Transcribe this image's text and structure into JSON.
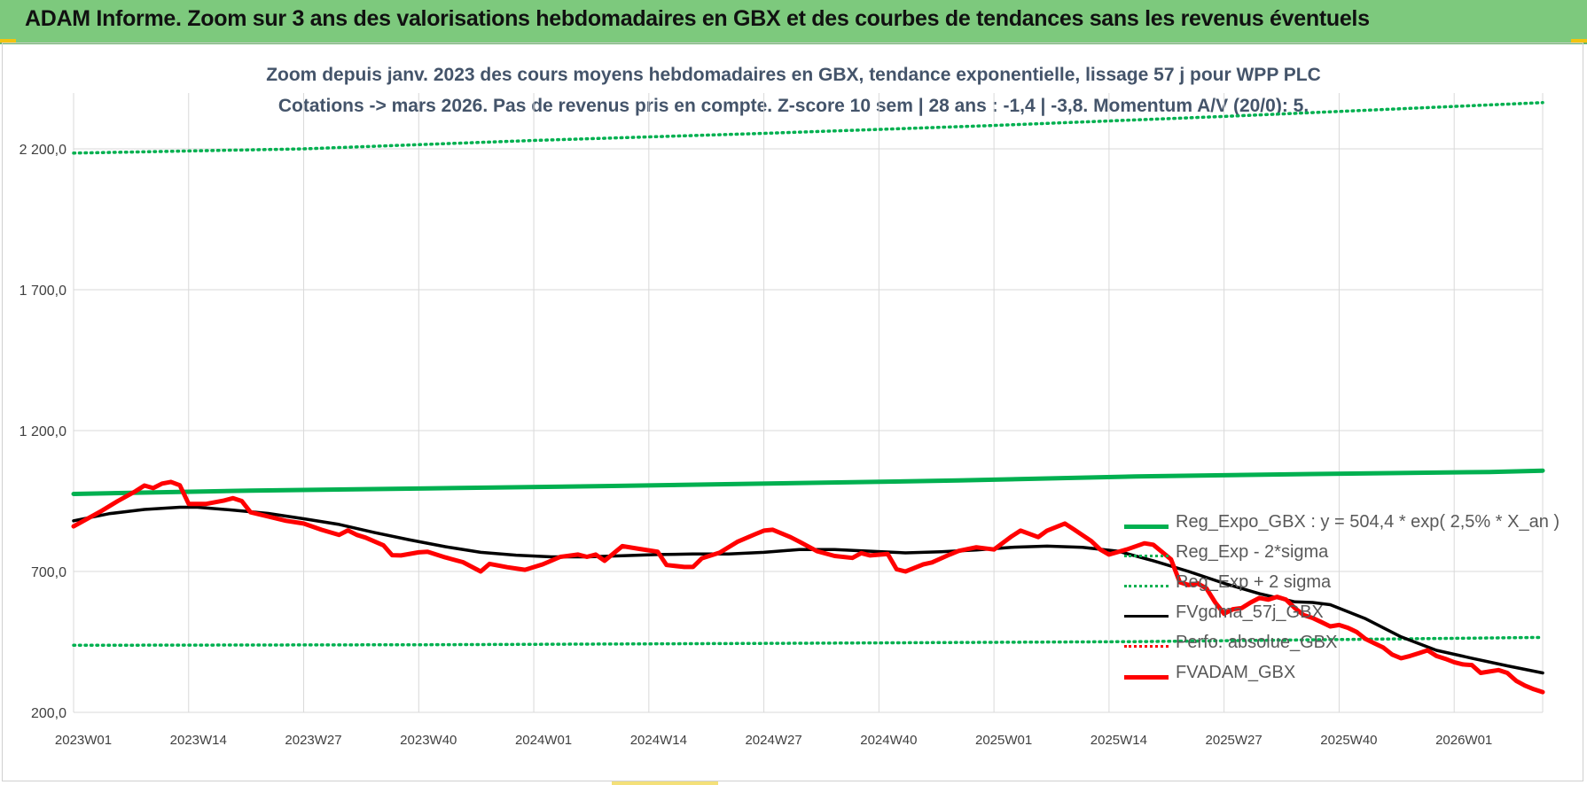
{
  "banner": {
    "title": "ADAM Informe. Zoom sur 3 ans des valorisations hebdomadaires en GBX et des courbes de tendances sans les revenus éventuels"
  },
  "chart_data": {
    "type": "line",
    "title": "Zoom depuis janv. 2023 des cours moyens hebdomadaires en GBX, tendance exponentielle, lissage 57 j pour WPP PLC",
    "subtitle": "Cotations -> mars 2026. Pas de revenus pris en compte. Z-score 10 sem | 28 ans : -1,4 | -3,8. Momentum A/V (20/0): 5.",
    "xlabel": "",
    "ylabel": "",
    "ylim": [
      200,
      2200
    ],
    "y_ticks": [
      "200,0",
      "700,0",
      "1 200,0",
      "1 700,0",
      "2 200,0"
    ],
    "x_ticks": [
      "2023W01",
      "2023W14",
      "2023W27",
      "2023W40",
      "2024W01",
      "2024W14",
      "2024W27",
      "2024W40",
      "2025W01",
      "2025W14",
      "2025W27",
      "2025W40",
      "2026W01"
    ],
    "x_range_weeks": [
      0,
      166
    ],
    "grid": true,
    "legend_position": "bottom-right",
    "series": [
      {
        "name": "Reg_Expo_GBX : y = 504,4 * exp( 2,5% *  X_an )",
        "color": "#00b050",
        "style": "solid-thick",
        "points": [
          [
            0,
            975
          ],
          [
            20,
            987
          ],
          [
            40,
            995
          ],
          [
            60,
            1003
          ],
          [
            80,
            1013
          ],
          [
            100,
            1023
          ],
          [
            120,
            1037
          ],
          [
            140,
            1046
          ],
          [
            160,
            1053
          ],
          [
            166,
            1058
          ]
        ]
      },
      {
        "name": "Reg_Exp - 2*sigma",
        "color": "#00b050",
        "style": "dotted",
        "points": [
          [
            0,
            438
          ],
          [
            40,
            440
          ],
          [
            80,
            445
          ],
          [
            120,
            451
          ],
          [
            166,
            466
          ]
        ]
      },
      {
        "name": "Reg_Exp + 2 sigma",
        "color": "#00b050",
        "style": "dotted",
        "points": [
          [
            0,
            2185
          ],
          [
            26,
            2200
          ],
          [
            52,
            2230
          ],
          [
            78,
            2255
          ],
          [
            104,
            2283
          ],
          [
            130,
            2315
          ],
          [
            166,
            2364
          ]
        ]
      },
      {
        "name": "FVgdma_57j_GBX",
        "color": "#000000",
        "style": "solid",
        "points": [
          [
            0,
            880
          ],
          [
            4,
            905
          ],
          [
            8,
            920
          ],
          [
            12,
            928
          ],
          [
            14,
            928
          ],
          [
            18,
            918
          ],
          [
            22,
            906
          ],
          [
            26,
            887
          ],
          [
            30,
            867
          ],
          [
            34,
            838
          ],
          [
            38,
            812
          ],
          [
            42,
            788
          ],
          [
            46,
            768
          ],
          [
            50,
            758
          ],
          [
            54,
            752
          ],
          [
            58,
            752
          ],
          [
            62,
            756
          ],
          [
            66,
            760
          ],
          [
            70,
            762
          ],
          [
            74,
            762
          ],
          [
            78,
            768
          ],
          [
            82,
            778
          ],
          [
            86,
            778
          ],
          [
            90,
            772
          ],
          [
            94,
            766
          ],
          [
            98,
            770
          ],
          [
            102,
            776
          ],
          [
            106,
            786
          ],
          [
            110,
            790
          ],
          [
            114,
            786
          ],
          [
            118,
            772
          ],
          [
            122,
            738
          ],
          [
            126,
            700
          ],
          [
            130,
            658
          ],
          [
            134,
            621
          ],
          [
            138,
            592
          ],
          [
            140,
            590
          ],
          [
            142,
            582
          ],
          [
            146,
            532
          ],
          [
            150,
            468
          ],
          [
            154,
            420
          ],
          [
            158,
            392
          ],
          [
            162,
            365
          ],
          [
            166,
            340
          ]
        ]
      },
      {
        "name": "Perfo. absolue_GBX",
        "color": "#ff0000",
        "style": "dotted",
        "points": []
      },
      {
        "name": "FVADAM_GBX",
        "color": "#ff0000",
        "style": "solid-thick",
        "points": [
          [
            0,
            860
          ],
          [
            3,
            912
          ],
          [
            5,
            950
          ],
          [
            7,
            985
          ],
          [
            8,
            1005
          ],
          [
            9,
            996
          ],
          [
            10,
            1012
          ],
          [
            11,
            1018
          ],
          [
            12,
            1006
          ],
          [
            13,
            940
          ],
          [
            15,
            940
          ],
          [
            17,
            952
          ],
          [
            18,
            960
          ],
          [
            19,
            950
          ],
          [
            20,
            910
          ],
          [
            22,
            895
          ],
          [
            24,
            880
          ],
          [
            26,
            870
          ],
          [
            28,
            848
          ],
          [
            30,
            830
          ],
          [
            31,
            846
          ],
          [
            32,
            830
          ],
          [
            33,
            820
          ],
          [
            35,
            793
          ],
          [
            36,
            758
          ],
          [
            37,
            757
          ],
          [
            39,
            768
          ],
          [
            40,
            770
          ],
          [
            42,
            750
          ],
          [
            44,
            733
          ],
          [
            46,
            700
          ],
          [
            47,
            727
          ],
          [
            49,
            715
          ],
          [
            51,
            706
          ],
          [
            53,
            725
          ],
          [
            55,
            752
          ],
          [
            57,
            760
          ],
          [
            58,
            752
          ],
          [
            59,
            760
          ],
          [
            60,
            738
          ],
          [
            62,
            790
          ],
          [
            64,
            780
          ],
          [
            66,
            770
          ],
          [
            67,
            723
          ],
          [
            69,
            716
          ],
          [
            70,
            716
          ],
          [
            71,
            747
          ],
          [
            73,
            767
          ],
          [
            75,
            805
          ],
          [
            77,
            832
          ],
          [
            78,
            845
          ],
          [
            79,
            848
          ],
          [
            81,
            822
          ],
          [
            82,
            806
          ],
          [
            84,
            772
          ],
          [
            86,
            755
          ],
          [
            88,
            748
          ],
          [
            89,
            765
          ],
          [
            90,
            757
          ],
          [
            92,
            762
          ],
          [
            93,
            708
          ],
          [
            94,
            700
          ],
          [
            96,
            725
          ],
          [
            97,
            732
          ],
          [
            99,
            760
          ],
          [
            100,
            773
          ],
          [
            102,
            786
          ],
          [
            104,
            778
          ],
          [
            106,
            825
          ],
          [
            107,
            845
          ],
          [
            109,
            822
          ],
          [
            110,
            845
          ],
          [
            112,
            870
          ],
          [
            113,
            850
          ],
          [
            115,
            808
          ],
          [
            116,
            778
          ],
          [
            117,
            760
          ],
          [
            119,
            778
          ],
          [
            121,
            800
          ],
          [
            122,
            795
          ],
          [
            124,
            743
          ],
          [
            125,
            662
          ],
          [
            126,
            652
          ],
          [
            127,
            658
          ],
          [
            128,
            640
          ],
          [
            129,
            590
          ],
          [
            130,
            550
          ],
          [
            131,
            566
          ],
          [
            132,
            570
          ],
          [
            133,
            590
          ],
          [
            134,
            606
          ],
          [
            135,
            600
          ],
          [
            136,
            610
          ],
          [
            137,
            600
          ],
          [
            138,
            570
          ],
          [
            139,
            545
          ],
          [
            140,
            535
          ],
          [
            141,
            520
          ],
          [
            142,
            505
          ],
          [
            143,
            510
          ],
          [
            144,
            500
          ],
          [
            145,
            485
          ],
          [
            146,
            460
          ],
          [
            147,
            445
          ],
          [
            148,
            430
          ],
          [
            149,
            405
          ],
          [
            150,
            392
          ],
          [
            151,
            400
          ],
          [
            152,
            410
          ],
          [
            153,
            420
          ],
          [
            154,
            400
          ],
          [
            155,
            390
          ],
          [
            156,
            378
          ],
          [
            157,
            370
          ],
          [
            158,
            368
          ],
          [
            159,
            340
          ],
          [
            160,
            345
          ],
          [
            161,
            350
          ],
          [
            162,
            340
          ],
          [
            163,
            312
          ],
          [
            164,
            295
          ],
          [
            165,
            282
          ],
          [
            166,
            272
          ]
        ]
      }
    ]
  }
}
